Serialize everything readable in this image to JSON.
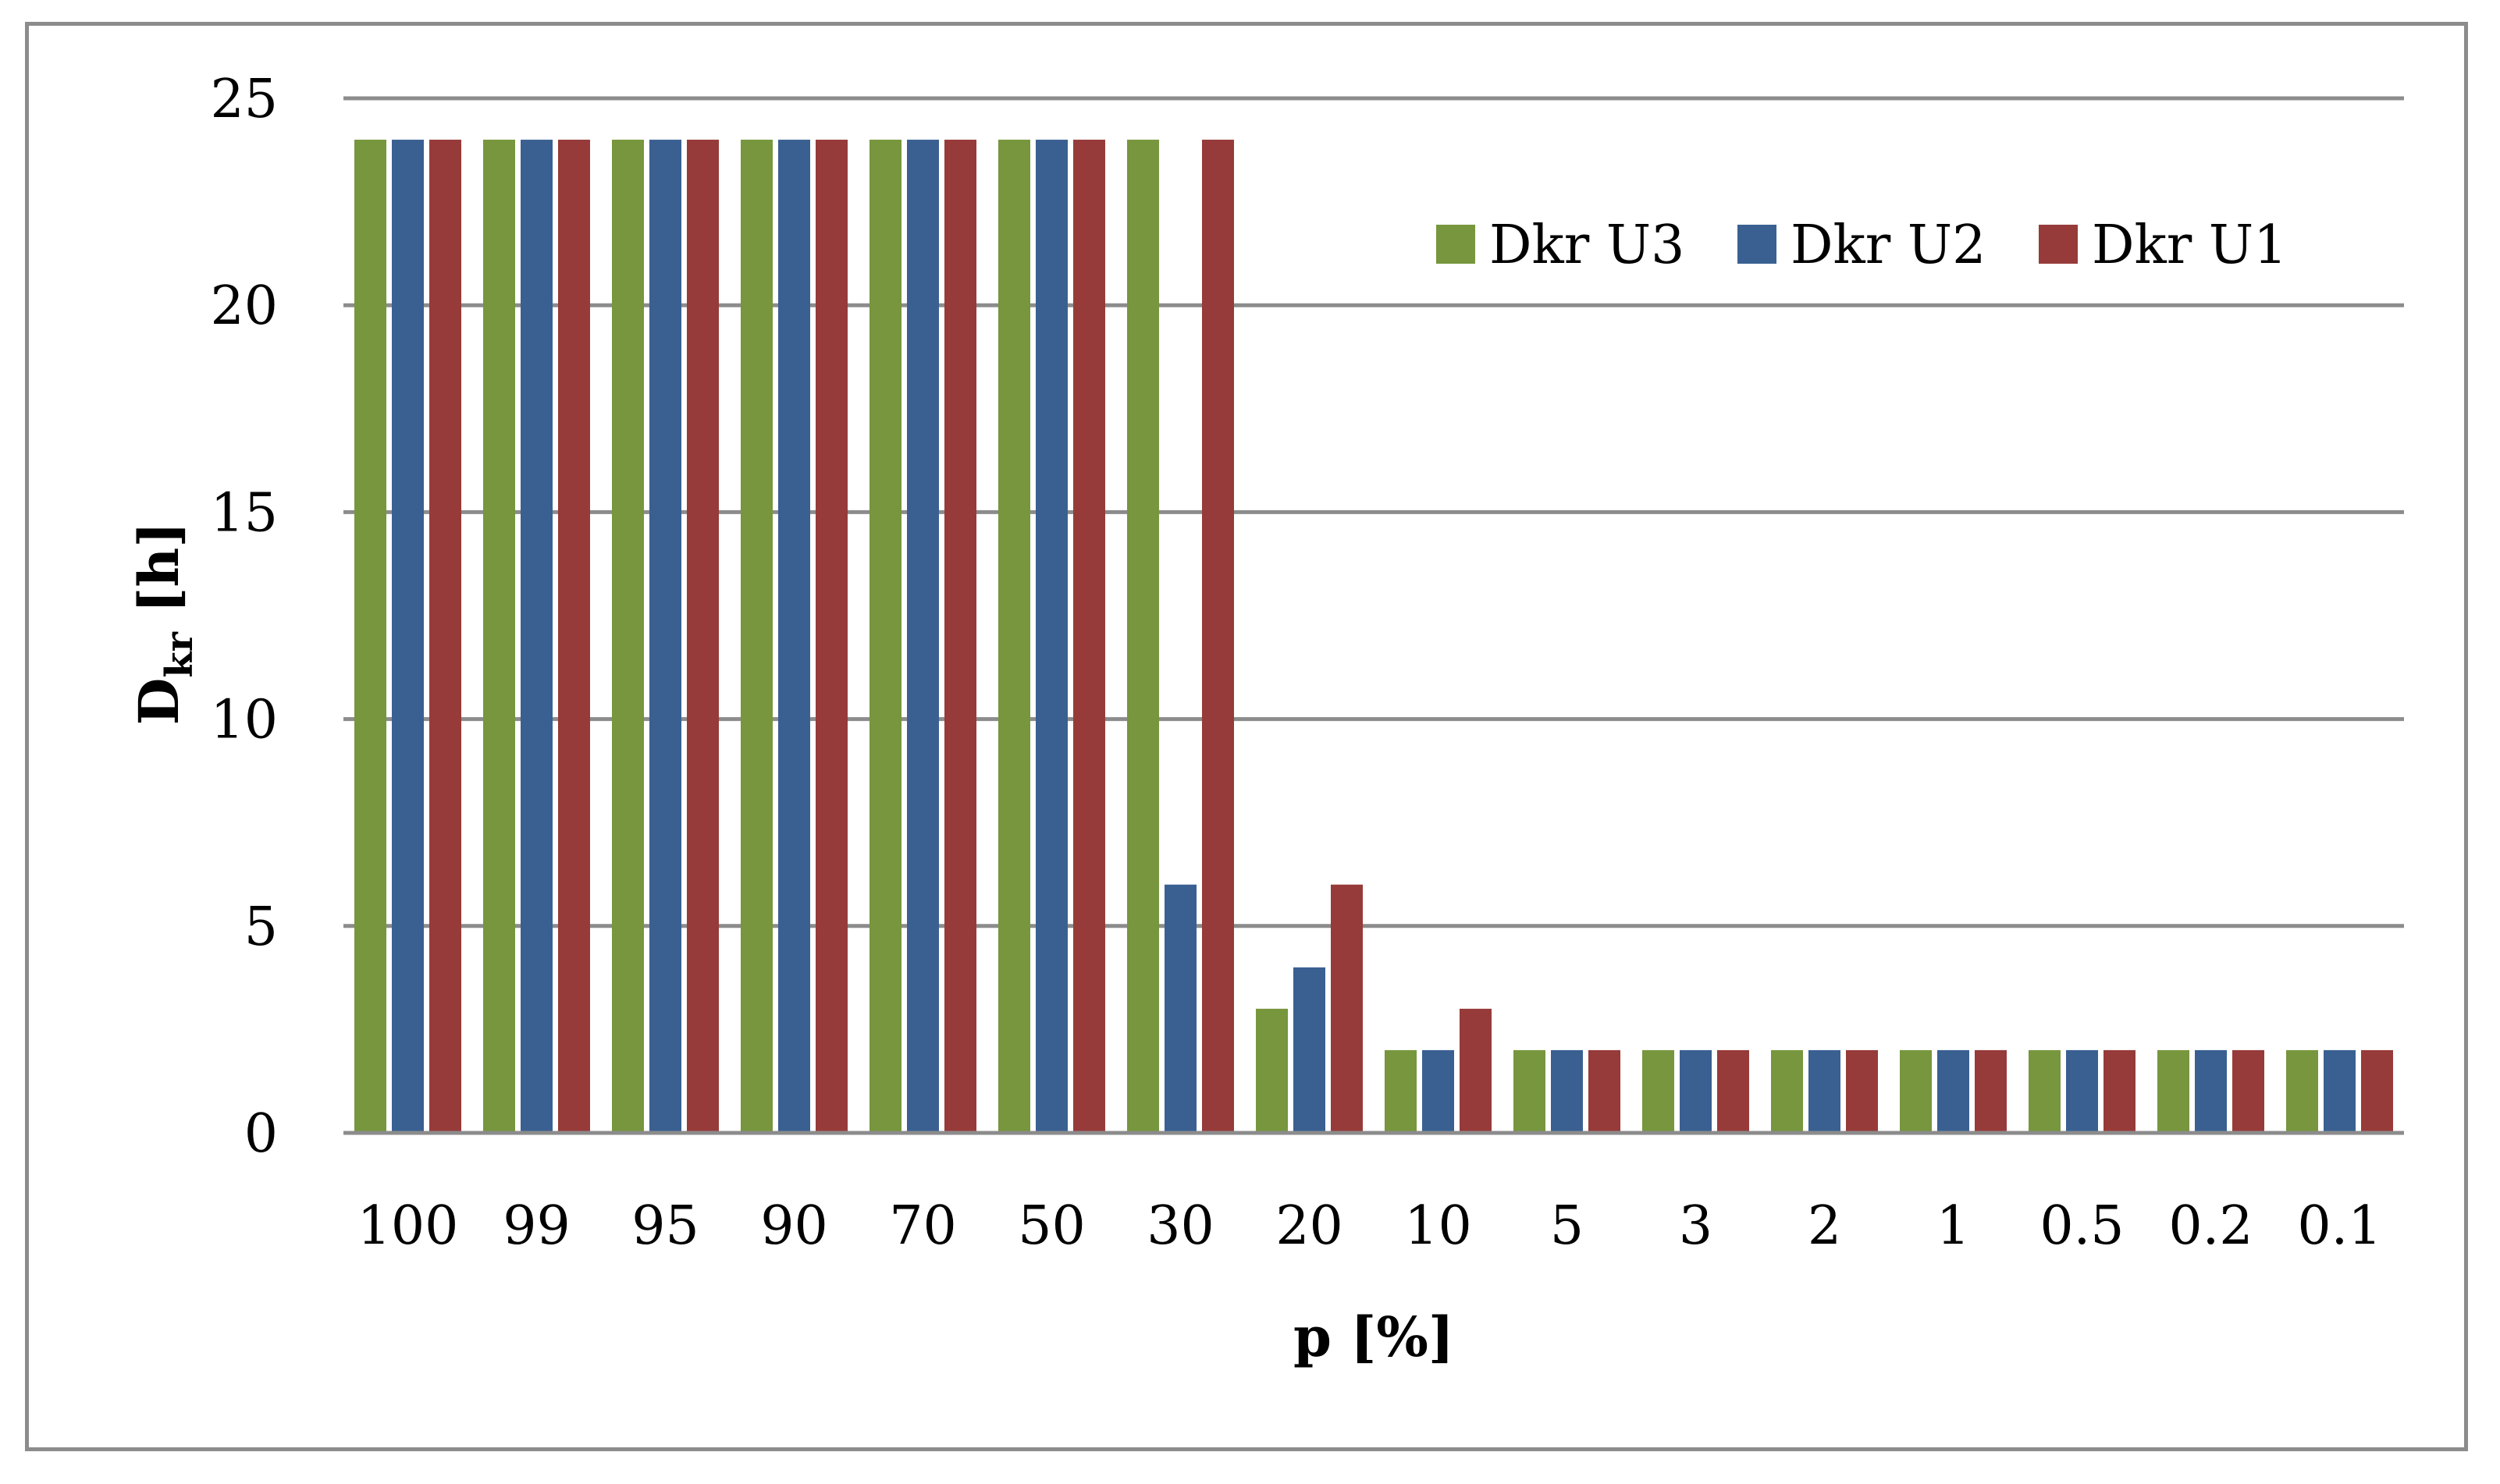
{
  "chart_data": {
    "type": "bar",
    "categories": [
      "100",
      "99",
      "95",
      "90",
      "70",
      "50",
      "30",
      "20",
      "10",
      "5",
      "3",
      "2",
      "1",
      "0.5",
      "0.2",
      "0.1"
    ],
    "series": [
      {
        "name": "Dkr U3",
        "color": "#77963d",
        "values": [
          24,
          24,
          24,
          24,
          24,
          24,
          24,
          3,
          2,
          2,
          2,
          2,
          2,
          2,
          2,
          2
        ]
      },
      {
        "name": "Dkr U2",
        "color": "#3a6092",
        "values": [
          24,
          24,
          24,
          24,
          24,
          24,
          6,
          4,
          2,
          2,
          2,
          2,
          2,
          2,
          2,
          2
        ]
      },
      {
        "name": "Dkr U1",
        "color": "#963b39",
        "values": [
          24,
          24,
          24,
          24,
          24,
          24,
          24,
          6,
          3,
          2,
          2,
          2,
          2,
          2,
          2,
          2
        ]
      }
    ],
    "xlabel": "p [%]",
    "ylabel": {
      "main": "D",
      "sub": "kr",
      "unit": " [h]"
    },
    "ylim": [
      0,
      25
    ],
    "yticks": [
      0,
      5,
      10,
      15,
      20,
      25
    ],
    "grid": true,
    "legend_position": "top-right"
  }
}
